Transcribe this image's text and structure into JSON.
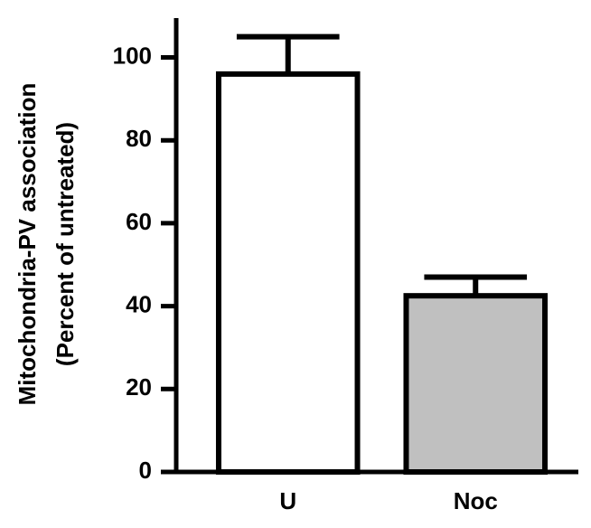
{
  "chart_data": {
    "type": "bar",
    "ylabel": [
      "Mitochondria-PV association",
      "(Percent of untreated)"
    ],
    "categories": [
      "U",
      "Noc"
    ],
    "values": [
      96,
      42.5
    ],
    "errors": [
      9,
      4.5
    ],
    "colors": [
      "#ffffff",
      "#c0c0c0"
    ],
    "ylim": [
      0,
      109.5
    ],
    "yticks": [
      0,
      20,
      40,
      60,
      80,
      100
    ]
  }
}
